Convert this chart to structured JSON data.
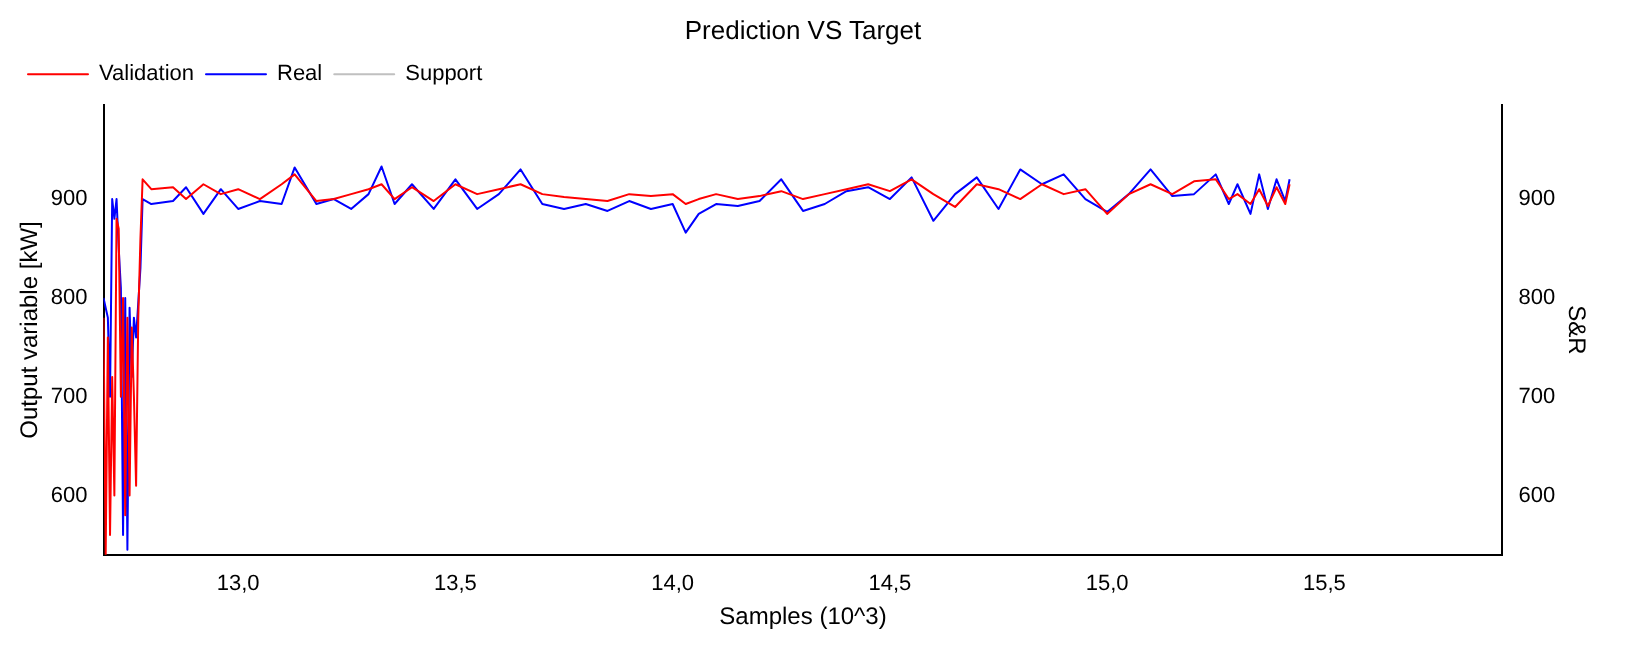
{
  "chart_data": {
    "type": "line",
    "title": "Prediction VS Target",
    "xlabel": "Samples (10^3)",
    "ylabel": "Output variable [kW]",
    "y2label": "S&R",
    "xlim": [
      12.69,
      15.91
    ],
    "xticks": [
      {
        "value": 13,
        "label": "13,0"
      },
      {
        "value": 13.5,
        "label": "13,5"
      },
      {
        "value": 14,
        "label": "14,0"
      },
      {
        "value": 14.5,
        "label": "14,5"
      },
      {
        "value": 15,
        "label": "15,0"
      },
      {
        "value": 15.5,
        "label": "15,5"
      }
    ],
    "ylim": [
      540,
      995
    ],
    "yticks": [
      600,
      700,
      800,
      900
    ],
    "y2lim": [
      540,
      995
    ],
    "y2ticks": [
      600,
      700,
      800,
      900
    ],
    "grid": false,
    "legend": "top left",
    "marker": "none",
    "line_style": "solid",
    "series": [
      {
        "name": "Validation",
        "color": "#ff0000",
        "x": [
          12.69,
          12.695,
          12.7,
          12.705,
          12.71,
          12.715,
          12.72,
          12.725,
          12.73,
          12.735,
          12.74,
          12.745,
          12.75,
          12.755,
          12.76,
          12.765,
          12.77,
          12.775,
          12.78,
          12.8,
          12.85,
          12.88,
          12.92,
          12.96,
          13.0,
          13.05,
          13.1,
          13.13,
          13.18,
          13.22,
          13.26,
          13.3,
          13.33,
          13.36,
          13.4,
          13.45,
          13.5,
          13.55,
          13.6,
          13.65,
          13.7,
          13.75,
          13.8,
          13.85,
          13.9,
          13.95,
          14.0,
          14.03,
          14.06,
          14.1,
          14.15,
          14.2,
          14.25,
          14.3,
          14.35,
          14.4,
          14.45,
          14.5,
          14.55,
          14.6,
          14.65,
          14.7,
          14.75,
          14.8,
          14.85,
          14.9,
          14.95,
          15.0,
          15.05,
          15.1,
          15.15,
          15.2,
          15.25,
          15.28,
          15.3,
          15.33,
          15.35,
          15.37,
          15.39,
          15.41,
          15.42
        ],
        "values": [
          780,
          540,
          760,
          560,
          720,
          600,
          880,
          870,
          700,
          800,
          580,
          780,
          600,
          770,
          700,
          610,
          780,
          860,
          920,
          910,
          912,
          900,
          915,
          905,
          910,
          900,
          915,
          925,
          898,
          900,
          905,
          910,
          915,
          900,
          912,
          898,
          915,
          905,
          910,
          915,
          905,
          902,
          900,
          898,
          905,
          903,
          905,
          895,
          900,
          905,
          900,
          903,
          908,
          900,
          905,
          910,
          915,
          908,
          920,
          905,
          892,
          915,
          910,
          900,
          915,
          905,
          910,
          885,
          905,
          915,
          905,
          918,
          920,
          900,
          905,
          895,
          910,
          893,
          912,
          895,
          915
        ]
      },
      {
        "name": "Real",
        "color": "#0000ff",
        "x": [
          12.69,
          12.695,
          12.7,
          12.705,
          12.71,
          12.715,
          12.72,
          12.725,
          12.73,
          12.735,
          12.74,
          12.745,
          12.75,
          12.755,
          12.76,
          12.765,
          12.775,
          12.78,
          12.8,
          12.85,
          12.88,
          12.92,
          12.96,
          13.0,
          13.05,
          13.1,
          13.13,
          13.18,
          13.22,
          13.26,
          13.3,
          13.33,
          13.36,
          13.4,
          13.45,
          13.5,
          13.55,
          13.6,
          13.65,
          13.7,
          13.75,
          13.8,
          13.85,
          13.9,
          13.95,
          14.0,
          14.03,
          14.06,
          14.1,
          14.15,
          14.2,
          14.25,
          14.3,
          14.35,
          14.4,
          14.45,
          14.5,
          14.55,
          14.6,
          14.65,
          14.7,
          14.75,
          14.8,
          14.85,
          14.9,
          14.95,
          15.0,
          15.05,
          15.1,
          15.15,
          15.2,
          15.25,
          15.28,
          15.3,
          15.33,
          15.35,
          15.37,
          15.39,
          15.41,
          15.42
        ],
        "values": [
          800,
          null,
          780,
          700,
          900,
          880,
          900,
          850,
          810,
          560,
          800,
          545,
          790,
          720,
          780,
          760,
          830,
          900,
          895,
          898,
          912,
          885,
          910,
          890,
          898,
          895,
          932,
          895,
          900,
          890,
          905,
          933,
          895,
          915,
          890,
          920,
          890,
          905,
          930,
          895,
          890,
          895,
          888,
          898,
          890,
          895,
          866,
          885,
          895,
          893,
          898,
          920,
          888,
          895,
          908,
          912,
          900,
          922,
          878,
          905,
          922,
          890,
          930,
          915,
          925,
          900,
          887,
          905,
          930,
          903,
          905,
          925,
          895,
          915,
          885,
          925,
          890,
          920,
          898,
          920
        ]
      },
      {
        "name": "Support",
        "color": "#c0c0c0"
      }
    ]
  }
}
